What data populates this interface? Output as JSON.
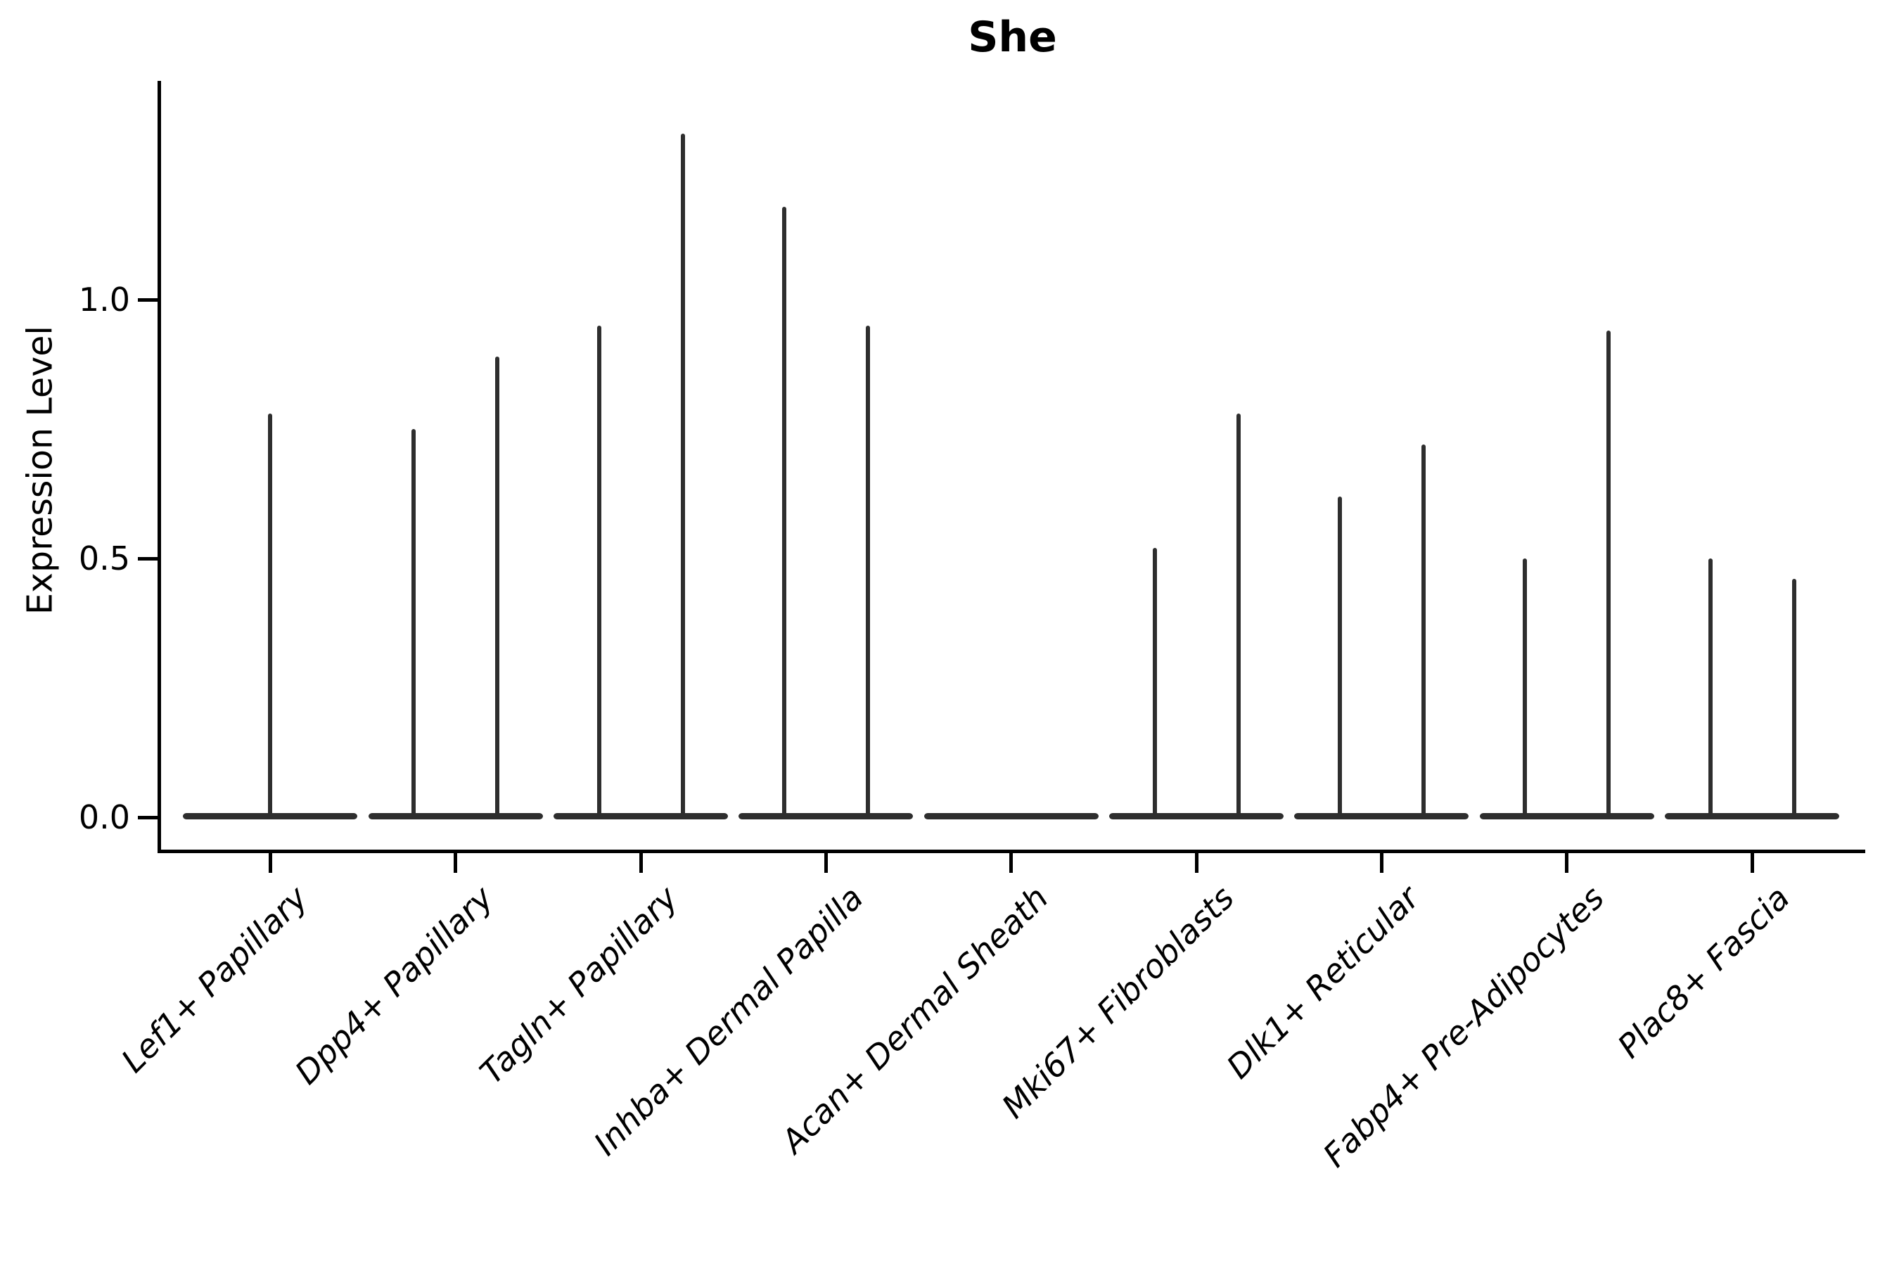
{
  "title": "She",
  "y_axis": {
    "label": "Expression Level",
    "tick_labels": [
      "0.0",
      "0.5",
      "1.0"
    ]
  },
  "chart_data": {
    "type": "violin",
    "title": "She",
    "xlabel": "",
    "ylabel": "Expression Level",
    "ylim": [
      -0.07,
      1.42
    ],
    "yticks": [
      0.0,
      0.5,
      1.0
    ],
    "grid": false,
    "legend": "none",
    "style": "mostly-zero expression violins: wide flat density base at 0 with a thin vertical whisker spike up to the maximum expression value; no spike means all values are 0",
    "baseline_value": 0.0,
    "categories": [
      {
        "label": "Lef1+ Papillary",
        "spikes": [
          0.78
        ]
      },
      {
        "label": "Dpp4+ Papillary",
        "spikes": [
          0.75,
          0.89
        ]
      },
      {
        "label": "Tagln+ Papillary",
        "spikes": [
          0.95,
          1.32
        ]
      },
      {
        "label": "Inhba+ Dermal Papilla",
        "spikes": [
          1.18,
          0.95
        ]
      },
      {
        "label": "Acan+ Dermal Sheath",
        "spikes": []
      },
      {
        "label": "Mki67+ Fibroblasts",
        "spikes": [
          0.52,
          0.78
        ]
      },
      {
        "label": "Dlk1+ Reticular",
        "spikes": [
          0.62,
          0.72
        ]
      },
      {
        "label": "Fabp4+ Pre-Adipocytes",
        "spikes": [
          0.5,
          0.94
        ]
      },
      {
        "label": "Plac8+ Fascia",
        "spikes": [
          0.5,
          0.46
        ]
      }
    ],
    "colors": {
      "violin": "#2e2e2e",
      "axes": "#000000",
      "background": "#ffffff"
    }
  }
}
